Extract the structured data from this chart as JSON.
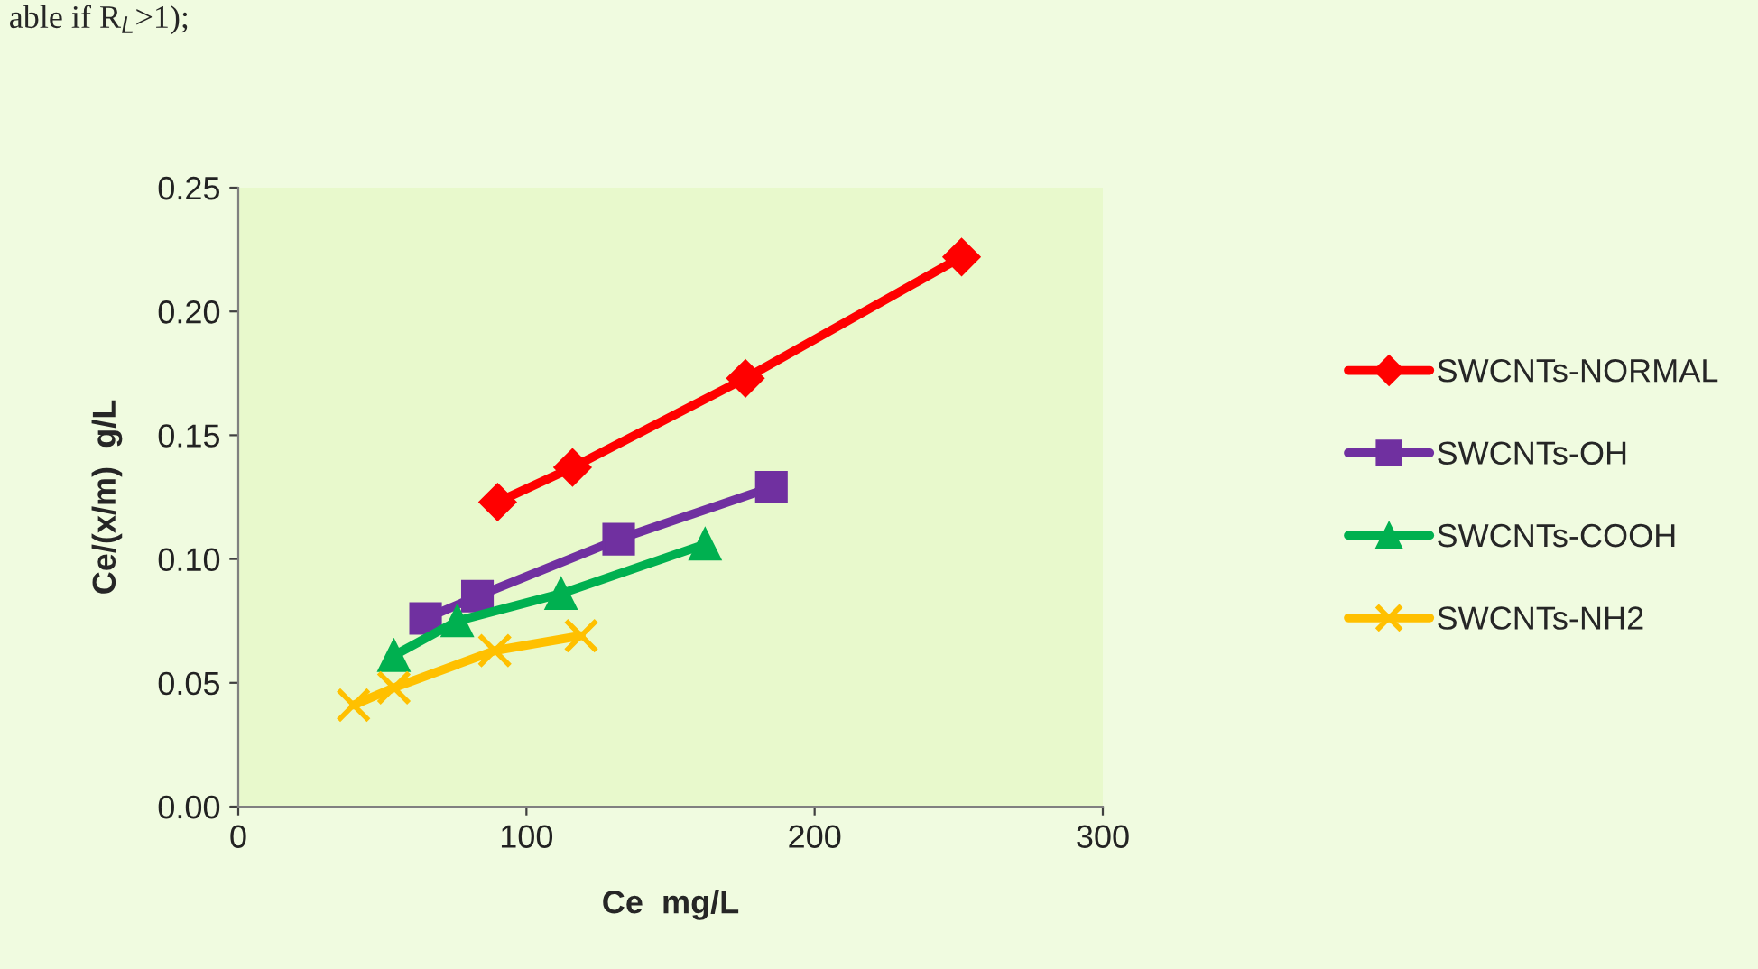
{
  "chart_data": {
    "type": "line",
    "xlabel": "Ce  mg/L",
    "ylabel": "Ce/(x/m)  g/L",
    "annotations": [
      "able if R$_{L}$>1);"
    ],
    "xlim": [
      0,
      300
    ],
    "xticks": [
      0,
      100,
      200,
      300
    ],
    "ylim": [
      0,
      0.25
    ],
    "yticks": [
      {
        "value": 0,
        "label": "0.00"
      },
      {
        "value": 0.05,
        "label": "0.05"
      },
      {
        "value": 0.1,
        "label": "0.10"
      },
      {
        "value": 0.15,
        "label": "0.15"
      },
      {
        "value": 0.2,
        "label": "0.20"
      },
      {
        "value": 0.25,
        "label": "0.25"
      }
    ],
    "grid": false,
    "legend": "right",
    "line_style": "solid",
    "series": [
      {
        "name": "SWCNTs-NORMAL",
        "color": "#ff0000",
        "marker": "diamond",
        "x": [
          90,
          116,
          176,
          251
        ],
        "values": [
          0.123,
          0.137,
          0.173,
          0.222
        ]
      },
      {
        "name": "SWCNTs-OH",
        "color": "#7030a0",
        "marker": "square",
        "x": [
          65,
          83,
          132,
          185
        ],
        "values": [
          0.076,
          0.085,
          0.108,
          0.129
        ]
      },
      {
        "name": "SWCNTs-COOH",
        "color": "#00b050",
        "marker": "triangle",
        "x": [
          54,
          76,
          112,
          162
        ],
        "values": [
          0.061,
          0.075,
          0.086,
          0.106
        ]
      },
      {
        "name": "SWCNTs-NH2",
        "color": "#ffc000",
        "marker": "cross",
        "x": [
          40,
          54,
          89,
          119
        ],
        "values": [
          0.041,
          0.048,
          0.063,
          0.069
        ]
      }
    ]
  }
}
